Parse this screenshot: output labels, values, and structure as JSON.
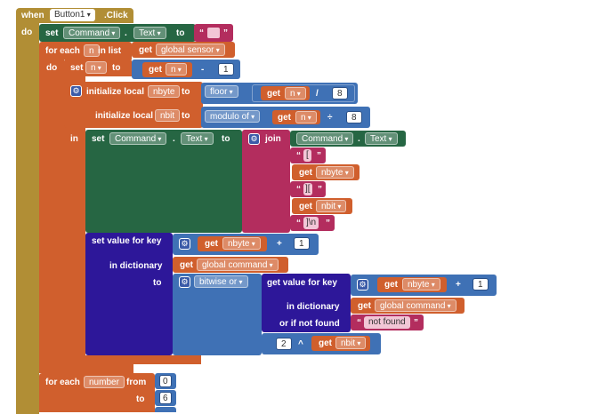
{
  "colors": {
    "control": "#b18e35",
    "variable": "#d05f2d",
    "math": "#3f71b5",
    "component": "#266643",
    "text": "#b32d5e",
    "dictionary": "#2d1799"
  },
  "event": {
    "when": "when",
    "component": "Button1",
    "event": ".Click",
    "do": "do"
  },
  "set_command_1": {
    "set": "set",
    "component": "Command",
    "dot": ".",
    "property": "Text",
    "to": "to",
    "value": ""
  },
  "foreach_list": {
    "for_each": "for each",
    "var": "n",
    "in_list": "in list",
    "do": "do",
    "get": "get",
    "list": "global sensor"
  },
  "set_n": {
    "set": "set",
    "var": "n",
    "to": "to",
    "get": "get",
    "get_var": "n",
    "op": "-",
    "num": "1"
  },
  "local_init": {
    "init_label": "initialize local",
    "var1": "nbyte",
    "to1": "to",
    "floor": "floor",
    "get1": "get",
    "get1_var": "n",
    "div_op": "/",
    "div_num": "8",
    "init_label2": "initialize local",
    "var2": "nbit",
    "to2": "to",
    "modulo": "modulo of",
    "get2": "get",
    "get2_var": "n",
    "mod_op": "÷",
    "mod_num": "8",
    "in": "in"
  },
  "set_command_2": {
    "set": "set",
    "component": "Command",
    "dot": ".",
    "property": "Text",
    "to": "to",
    "join": "join",
    "join_comp": "Command",
    "join_dot": ".",
    "join_prop": "Text",
    "item2": "[",
    "get_a": "get",
    "item3_var": "nbyte",
    "item4": "][",
    "get_b": "get",
    "item5_var": "nbit",
    "item6": "]\\n"
  },
  "set_value": {
    "label": "set value for key",
    "get": "get",
    "key_var": "nbyte",
    "plus": "+",
    "key_num": "1",
    "in_dict": "in dictionary",
    "dict_get": "get",
    "dict": "global command",
    "to": "to",
    "bitwise": "bitwise or",
    "get_value": "get value for key",
    "gv_get": "get",
    "gv_key_var": "nbyte",
    "gv_plus": "+",
    "gv_num": "1",
    "gv_in_dict": "in dictionary",
    "gv_dict_get": "get",
    "gv_dict": "global command",
    "not_found_label": "or if not found",
    "not_found": "not found",
    "pow_base": "2",
    "pow_op": "^",
    "pow_get": "get",
    "pow_var": "nbit"
  },
  "foreach_number": {
    "for_each": "for each",
    "var": "number",
    "from": "from",
    "from_val": "0",
    "to": "to",
    "to_val": "6"
  }
}
